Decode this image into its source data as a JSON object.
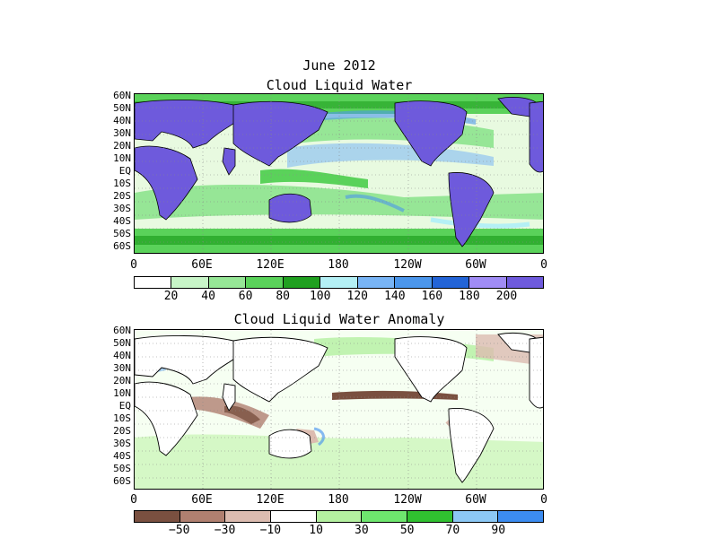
{
  "title": "June 2012",
  "map1": {
    "title": "Cloud Liquid Water",
    "lat_labels": [
      "60N",
      "50N",
      "40N",
      "30N",
      "20N",
      "10N",
      "EQ",
      "10S",
      "20S",
      "30S",
      "40S",
      "50S",
      "60S"
    ],
    "lon_labels": [
      "0",
      "60E",
      "120E",
      "180",
      "120W",
      "60W",
      "0"
    ],
    "colorbar": {
      "colors": [
        "#ffffff",
        "#c8f5c8",
        "#96e696",
        "#5ad25a",
        "#20a020",
        "#b4f0f5",
        "#78b4f5",
        "#4b96eb",
        "#2364d7",
        "#a08cf5",
        "#6e5adc"
      ],
      "labels": [
        "20",
        "40",
        "60",
        "80",
        "100",
        "120",
        "140",
        "160",
        "180",
        "200"
      ]
    },
    "land_color": "#6e5adc"
  },
  "map2": {
    "title": "Cloud Liquid Water Anomaly",
    "lat_labels": [
      "60N",
      "50N",
      "40N",
      "30N",
      "20N",
      "10N",
      "EQ",
      "10S",
      "20S",
      "30S",
      "40S",
      "50S",
      "60S"
    ],
    "lon_labels": [
      "0",
      "60E",
      "120E",
      "180",
      "120W",
      "60W",
      "0"
    ],
    "colorbar": {
      "colors": [
        "#7a5040",
        "#b08070",
        "#dcbcb0",
        "#ffffff",
        "#b4f0a0",
        "#6ee66e",
        "#30c030",
        "#8cc8f5",
        "#3c8cf0"
      ],
      "labels": [
        "−50",
        "−30",
        "−10",
        "10",
        "30",
        "50",
        "70",
        "90"
      ]
    }
  }
}
